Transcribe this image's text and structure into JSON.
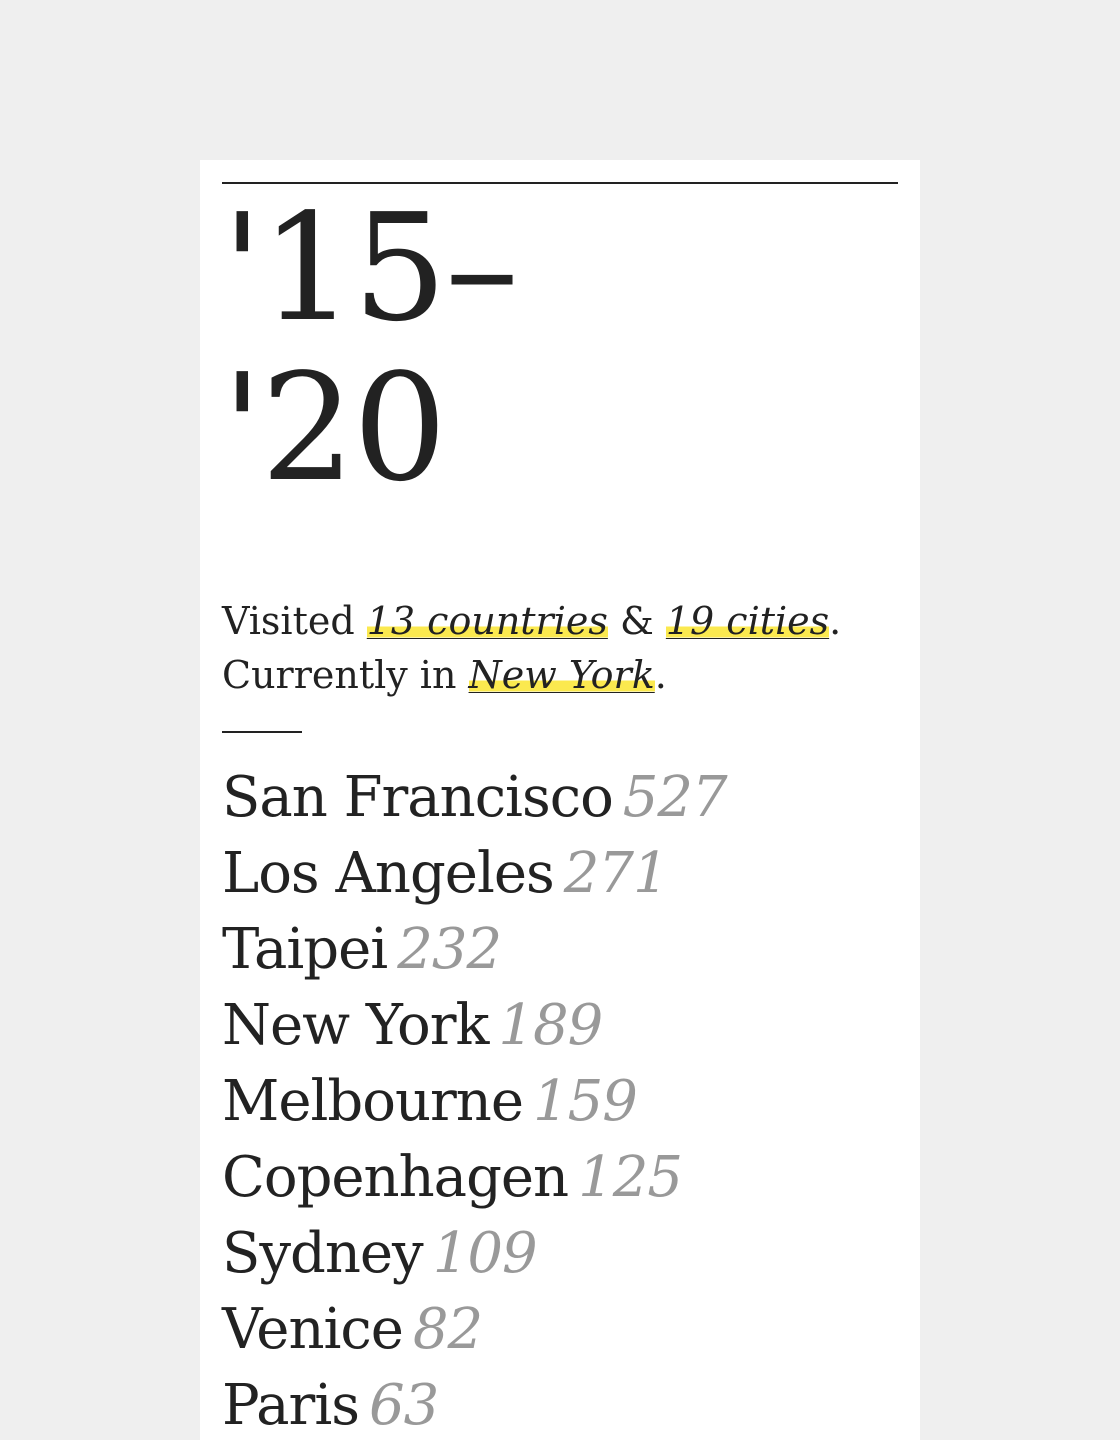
{
  "header": {
    "years_line1": "'15–",
    "years_line2": "'20"
  },
  "summary": {
    "visited_prefix": "Visited ",
    "countries": "13 countries",
    "ampersand": " & ",
    "cities": "19 cities",
    "period1": ".",
    "currently_prefix": "Currently in ",
    "current_city": "New York",
    "period2": "."
  },
  "colors": {
    "highlight": "#fbe94f",
    "background": "#efefef",
    "card": "#ffffff",
    "text": "#222222",
    "count": "#999999"
  },
  "cities": [
    {
      "name": "San Francisco",
      "count": "527"
    },
    {
      "name": "Los Angeles",
      "count": "271"
    },
    {
      "name": "Taipei",
      "count": "232"
    },
    {
      "name": "New York",
      "count": "189"
    },
    {
      "name": "Melbourne",
      "count": "159"
    },
    {
      "name": "Copenhagen",
      "count": "125"
    },
    {
      "name": "Sydney",
      "count": "109"
    },
    {
      "name": "Venice",
      "count": "82"
    },
    {
      "name": "Paris",
      "count": "63"
    }
  ]
}
